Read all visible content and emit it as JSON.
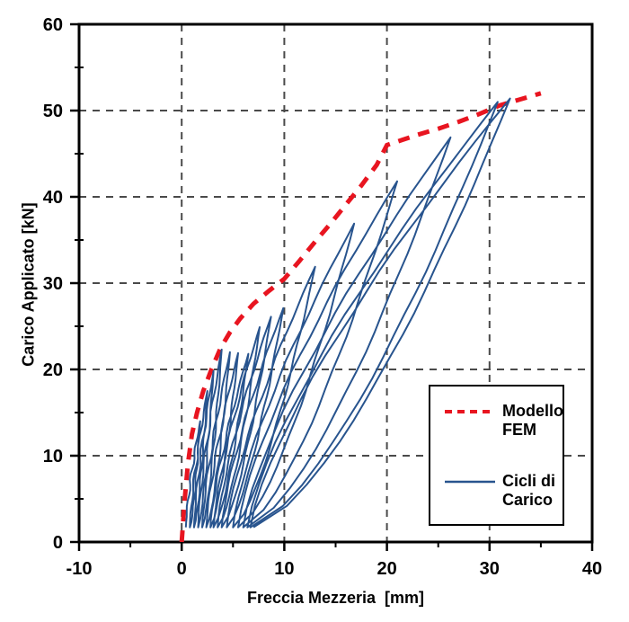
{
  "chart_data": {
    "type": "line",
    "title": "",
    "xlabel": "Freccia Mezzeria  [mm]",
    "ylabel": "Carico Applicato [kN]",
    "xlim": [
      -10,
      40
    ],
    "ylim": [
      0,
      60
    ],
    "xticks": [
      -10,
      0,
      10,
      20,
      30,
      40
    ],
    "yticks": [
      0,
      10,
      20,
      30,
      40,
      50,
      60
    ],
    "x_minor_ticks": [
      -5,
      5,
      15,
      25,
      35
    ],
    "y_minor_ticks": [
      5,
      15,
      25,
      35,
      45,
      55
    ],
    "grid": {
      "on": true,
      "style": "dashed",
      "color": "#4a4a4a",
      "x_lines": [
        0,
        10,
        20,
        30
      ],
      "y_lines": [
        10,
        20,
        30,
        40,
        50
      ]
    },
    "legend_position": "bottom-right",
    "series": [
      {
        "name": "Modello FEM",
        "style": "dashed",
        "color": "#e81520",
        "points": [
          [
            0,
            0
          ],
          [
            0.3,
            5
          ],
          [
            0.6,
            9
          ],
          [
            1.0,
            12.5
          ],
          [
            1.5,
            15
          ],
          [
            2.1,
            17.5
          ],
          [
            2.9,
            20
          ],
          [
            3.8,
            22.5
          ],
          [
            4.7,
            24.3
          ],
          [
            5.7,
            25.9
          ],
          [
            7.0,
            27.6
          ],
          [
            8.5,
            29.1
          ],
          [
            10,
            30.5
          ],
          [
            11.5,
            32.6
          ],
          [
            13,
            34.8
          ],
          [
            14.5,
            36.9
          ],
          [
            16,
            39.1
          ],
          [
            17.5,
            41.3
          ],
          [
            19,
            43.7
          ],
          [
            20,
            46
          ],
          [
            21.5,
            46.6
          ],
          [
            23,
            47.2
          ],
          [
            25,
            47.9
          ],
          [
            27,
            48.7
          ],
          [
            29,
            49.6
          ],
          [
            31,
            50.6
          ],
          [
            33,
            51.3
          ],
          [
            35,
            52
          ]
        ]
      },
      {
        "name": "Cicli di Carico",
        "style": "solid",
        "color": "#28548e",
        "base_load": 1.7,
        "cycles": [
          {
            "start": 0.4,
            "peak": [
              1.8,
              14.0
            ],
            "end": 0.8
          },
          {
            "start": 0.8,
            "peak": [
              2.5,
              17.5
            ],
            "end": 1.2
          },
          {
            "start": 1.2,
            "peak": [
              3.1,
              19.8
            ],
            "end": 1.6
          },
          {
            "start": 1.6,
            "peak": [
              3.9,
              22.3
            ],
            "end": 2.0
          },
          {
            "start": 2.0,
            "peak": [
              4.7,
              22.0
            ],
            "end": 2.4
          },
          {
            "start": 2.4,
            "peak": [
              5.5,
              21.9
            ],
            "end": 2.8
          },
          {
            "start": 2.8,
            "peak": [
              6.5,
              21.8
            ],
            "end": 3.1
          },
          {
            "start": 3.1,
            "peak": [
              7.6,
              24.9
            ],
            "end": 3.5
          },
          {
            "start": 3.5,
            "peak": [
              8.7,
              26.1
            ],
            "end": 3.9
          },
          {
            "start": 3.9,
            "peak": [
              9.9,
              27.1
            ],
            "end": 4.4
          },
          {
            "start": 4.4,
            "peak": [
              13.0,
              31.9
            ],
            "end": 5.0
          },
          {
            "start": 5.0,
            "peak": [
              16.8,
              36.9
            ],
            "end": 5.5
          },
          {
            "start": 5.5,
            "peak": [
              21.0,
              41.8
            ],
            "end": 6.0
          },
          {
            "start": 6.0,
            "peak": [
              26.2,
              46.9
            ],
            "end": 6.4
          },
          {
            "start": 6.4,
            "peak": [
              30.8,
              51.0
            ],
            "end": 6.7
          },
          {
            "start": 6.7,
            "peak": [
              32.0,
              51.4
            ],
            "end": 7.0
          }
        ]
      }
    ]
  },
  "legend": {
    "fem_label": "Modello FEM",
    "cycles_label": "Cicli di Carico"
  },
  "colors": {
    "fem_red": "#e81520",
    "cycles_blue": "#28548e",
    "grid_gray": "#4a4a4a",
    "axis_black": "#000000"
  }
}
